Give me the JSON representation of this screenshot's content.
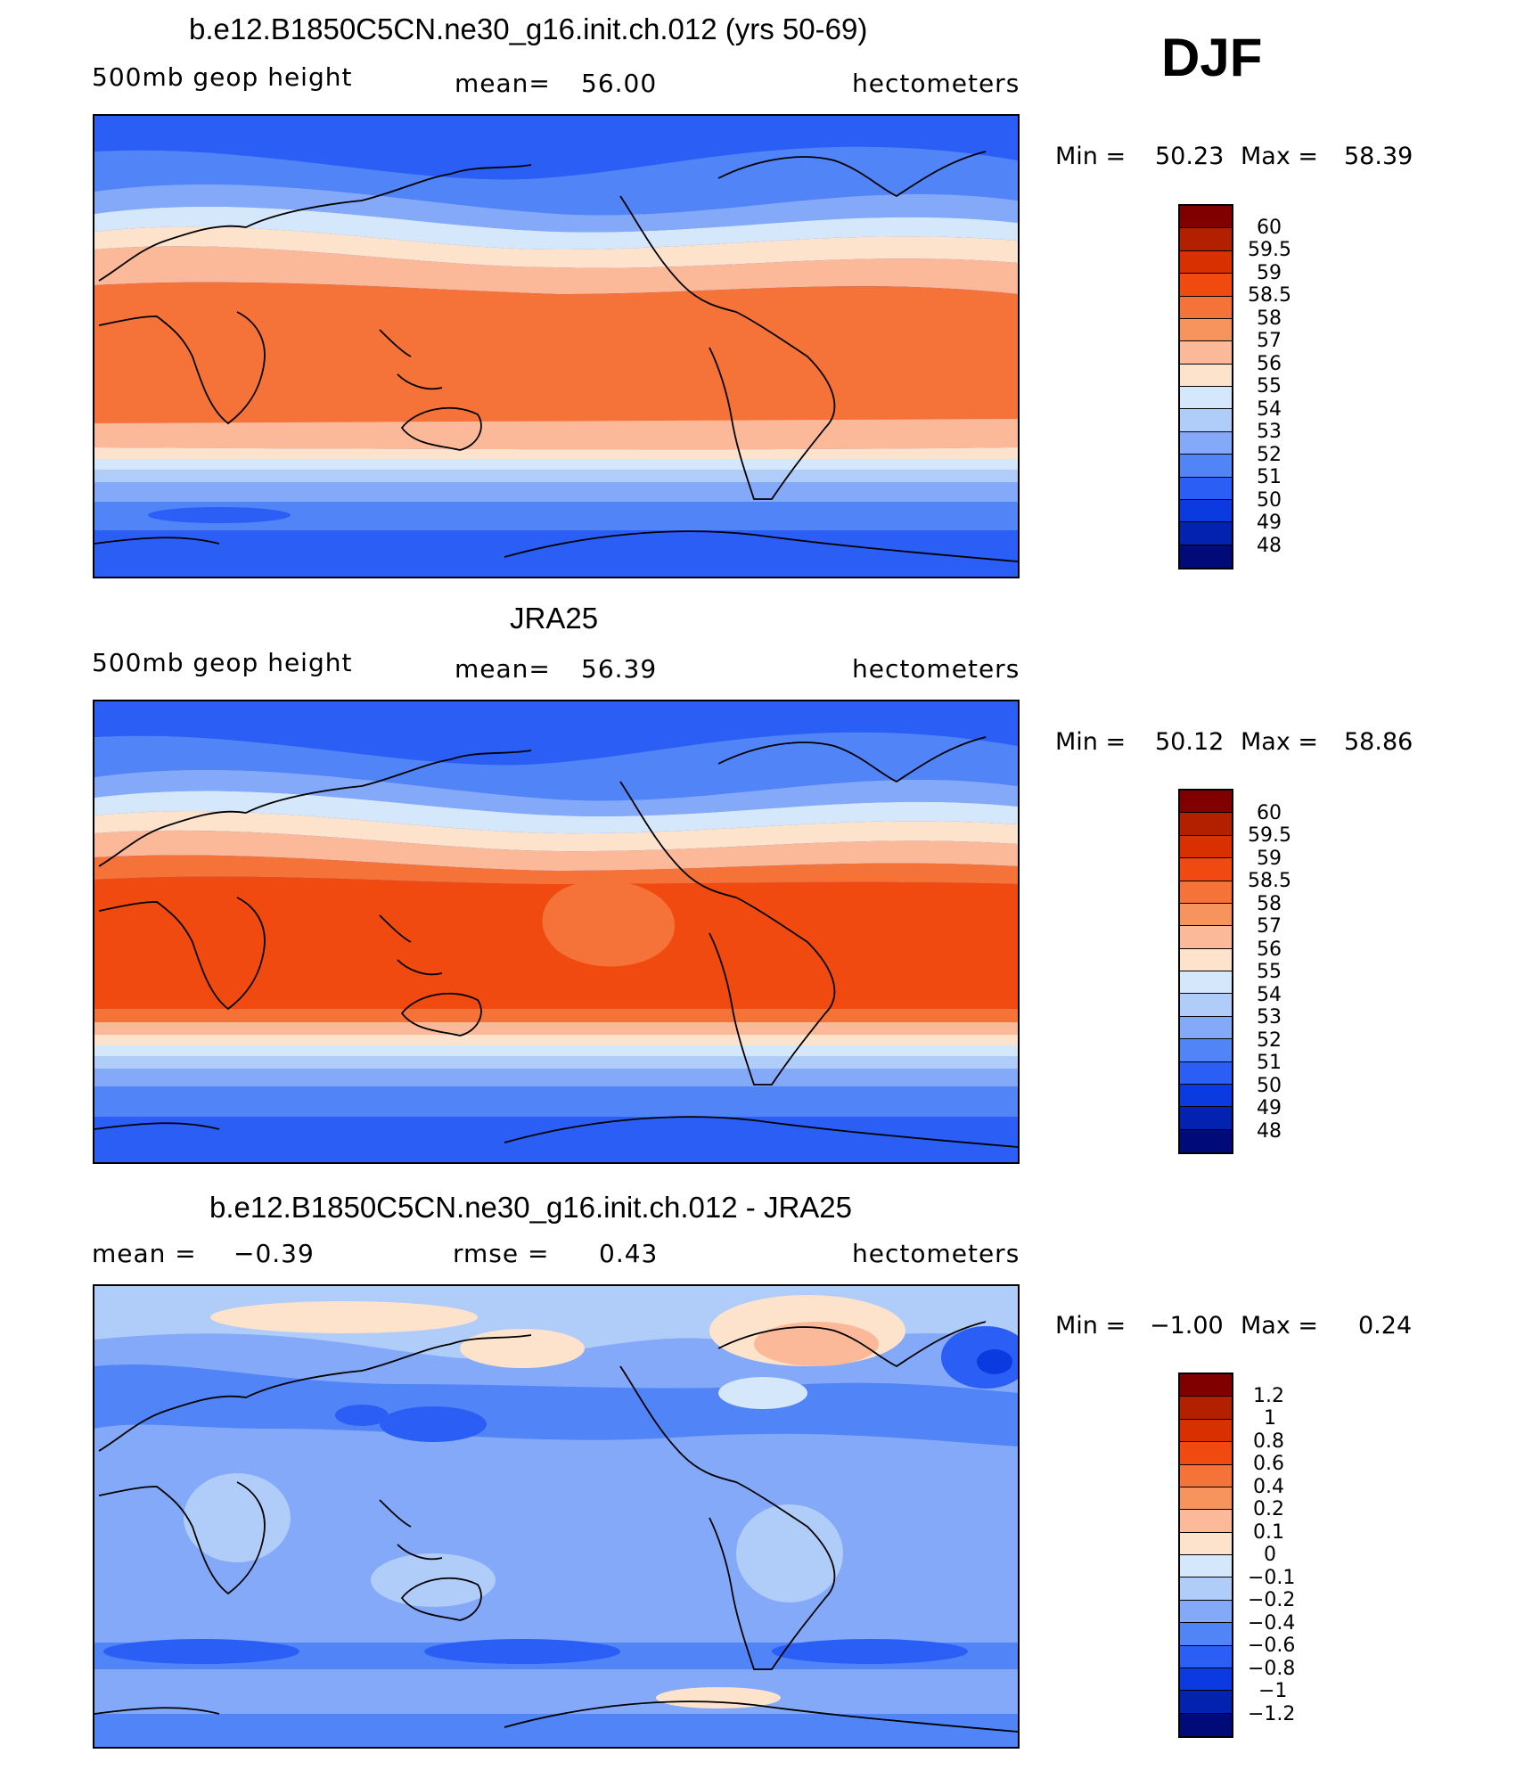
{
  "season": "DJF",
  "units": "hectometers",
  "panels": [
    {
      "title": "b.e12.B1850C5CN.ne30_g16.init.ch.012 (yrs 50-69)",
      "variable": "500mb geop height",
      "stat_label": "mean=",
      "stat_value": "56.00",
      "min_label": "Min =",
      "min_value": "50.23",
      "max_label": "Max =",
      "max_value": "58.39",
      "legend_labels": [
        "60",
        "59.5",
        "59",
        "58.5",
        "58",
        "57",
        "56",
        "55",
        "54",
        "53",
        "52",
        "51",
        "50",
        "49",
        "48"
      ]
    },
    {
      "title": "JRA25",
      "variable": "500mb geop height",
      "stat_label": "mean=",
      "stat_value": "56.39",
      "min_label": "Min =",
      "min_value": "50.12",
      "max_label": "Max =",
      "max_value": "58.86",
      "legend_labels": [
        "60",
        "59.5",
        "59",
        "58.5",
        "58",
        "57",
        "56",
        "55",
        "54",
        "53",
        "52",
        "51",
        "50",
        "49",
        "48"
      ]
    },
    {
      "title": "b.e12.B1850C5CN.ne30_g16.init.ch.012 - JRA25",
      "mean_label": "mean =",
      "mean_value": "−0.39",
      "rmse_label": "rmse =",
      "rmse_value": "0.43",
      "min_label": "Min =",
      "min_value": "−1.00",
      "max_label": "Max =",
      "max_value": "0.24",
      "legend_labels": [
        "1.2",
        "1",
        "0.8",
        "0.6",
        "0.4",
        "0.2",
        "0.1",
        "0",
        "−0.1",
        "−0.2",
        "−0.4",
        "−0.6",
        "−0.8",
        "−1",
        "−1.2"
      ]
    }
  ],
  "colors": {
    "colorbar": [
      "#800000",
      "#b22000",
      "#d93000",
      "#f04a10",
      "#f57238",
      "#f7935c",
      "#fbb99a",
      "#fde2cc",
      "#d5e7fb",
      "#b0ccf8",
      "#84a9f9",
      "#5184f7",
      "#2a5ef5",
      "#0b3ae0",
      "#0422b0",
      "#000b7a"
    ],
    "land_outline": "#000000"
  }
}
